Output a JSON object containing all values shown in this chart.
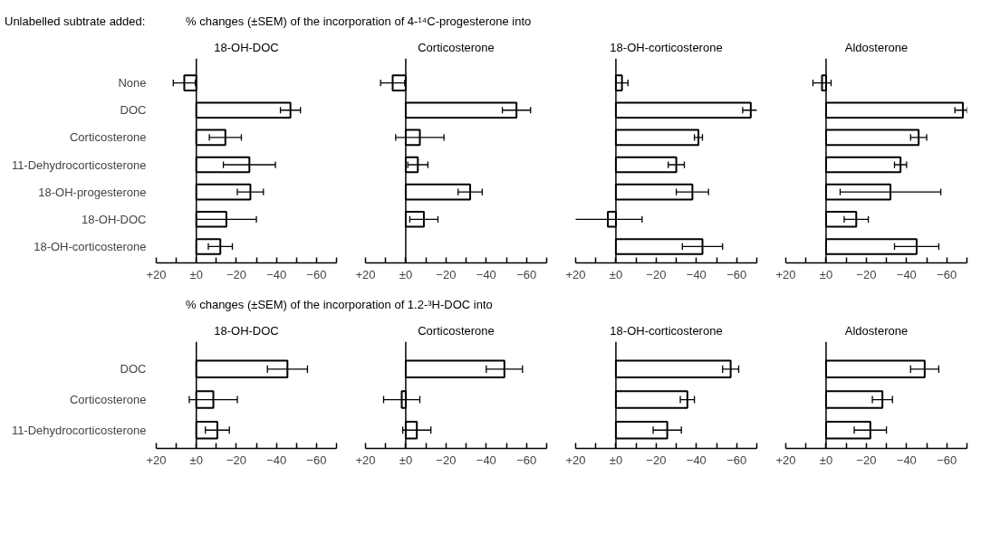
{
  "chart_data": [
    {
      "type": "bar",
      "orientation": "horizontal",
      "title": "18-OH-DOC",
      "annotations": [
        "Unlabelled subtrate added:",
        "% changes (±SEM) of the incorporation of 4-¹⁴C-progesterone into"
      ],
      "categories": [
        "None",
        "DOC",
        "Corticosterone",
        "11-Dehydrocorticosterone",
        "18-OH-progesterone",
        "18-OH-DOC",
        "18-OH-corticosterone"
      ],
      "values": [
        6,
        -47,
        -14.5,
        -26.5,
        -27,
        -15,
        -12
      ],
      "errors": [
        5.5,
        5,
        8,
        13,
        6.5,
        15,
        6
      ],
      "color": "#ffffff",
      "xlim": [
        20,
        -70
      ],
      "xticks": [
        {
          "value": 20,
          "label": "+20"
        },
        {
          "value": 10,
          "label": null
        },
        {
          "value": 0,
          "label": "±0"
        },
        {
          "value": -10,
          "label": null
        },
        -20,
        {
          "value": -30,
          "label": null
        },
        -40,
        {
          "value": -50,
          "label": null
        },
        -60,
        {
          "value": -70,
          "label": null
        }
      ],
      "ref_lines": [
        {
          "axis": "x",
          "value": 0
        }
      ]
    },
    {
      "type": "bar",
      "orientation": "horizontal",
      "title": "Corticosterone",
      "tick_labels": "x",
      "categories": [
        null,
        null,
        null,
        null,
        null,
        null,
        null
      ],
      "values": [
        6.5,
        -55,
        -7,
        -6,
        -32,
        -9,
        null
      ],
      "errors": [
        6,
        7,
        12,
        5,
        6,
        7,
        null
      ],
      "color": "#ffffff",
      "xlim": [
        20,
        -70
      ],
      "xticks": [
        {
          "value": 20,
          "label": "+20"
        },
        {
          "value": 10,
          "label": null
        },
        {
          "value": 0,
          "label": "±0"
        },
        {
          "value": -10,
          "label": null
        },
        -20,
        {
          "value": -30,
          "label": null
        },
        -40,
        {
          "value": -50,
          "label": null
        },
        -60,
        {
          "value": -70,
          "label": null
        }
      ],
      "ref_lines": [
        {
          "axis": "x",
          "value": 0
        }
      ]
    },
    {
      "type": "bar",
      "orientation": "horizontal",
      "title": "18-OH-corticosterone",
      "tick_labels": "x",
      "categories": [
        null,
        null,
        null,
        null,
        null,
        null,
        null
      ],
      "values": [
        -3,
        -67,
        -41,
        -30,
        -38,
        4,
        -43
      ],
      "errors": [
        3,
        4,
        2,
        4,
        8,
        17,
        10
      ],
      "color": "#ffffff",
      "xlim": [
        20,
        -70
      ],
      "xticks": [
        {
          "value": 20,
          "label": "+20"
        },
        {
          "value": 10,
          "label": null
        },
        {
          "value": 0,
          "label": "±0"
        },
        {
          "value": -10,
          "label": null
        },
        -20,
        {
          "value": -30,
          "label": null
        },
        -40,
        {
          "value": -50,
          "label": null
        },
        -60,
        {
          "value": -70,
          "label": null
        }
      ],
      "ref_lines": [
        {
          "axis": "x",
          "value": 0
        }
      ]
    },
    {
      "type": "bar",
      "orientation": "horizontal",
      "title": "Aldosterone",
      "tick_labels": "x",
      "categories": [
        null,
        null,
        null,
        null,
        null,
        null,
        null
      ],
      "values": [
        2,
        -68,
        -46,
        -37,
        -32,
        -15,
        -45
      ],
      "errors": [
        4.5,
        [
          -70,
          -64
        ],
        4,
        3,
        25,
        6,
        11
      ],
      "color": "#ffffff",
      "xlim": [
        20,
        -70
      ],
      "xticks": [
        {
          "value": 20,
          "label": "+20"
        },
        {
          "value": 10,
          "label": null
        },
        {
          "value": 0,
          "label": "±0"
        },
        {
          "value": -10,
          "label": null
        },
        -20,
        {
          "value": -30,
          "label": null
        },
        -40,
        {
          "value": -50,
          "label": null
        },
        -60,
        {
          "value": -70,
          "label": null
        }
      ],
      "ref_lines": [
        {
          "axis": "x",
          "value": 0
        }
      ]
    },
    {
      "type": "bar",
      "orientation": "horizontal",
      "title": "18-OH-DOC",
      "annotations": [
        "% changes (±SEM) of the incorporation of 1.2-³H-DOC into"
      ],
      "categories": [
        "DOC",
        "Corticosterone",
        "11-Dehydrocorticosterone"
      ],
      "values": [
        -45.5,
        -8.5,
        -10.5
      ],
      "errors": [
        10,
        12,
        6
      ],
      "color": "#ffffff",
      "xlim": [
        20,
        -70
      ],
      "xticks": [
        {
          "value": 20,
          "label": "+20"
        },
        {
          "value": 10,
          "label": null
        },
        {
          "value": 0,
          "label": "±0"
        },
        {
          "value": -10,
          "label": null
        },
        -20,
        {
          "value": -30,
          "label": null
        },
        -40,
        {
          "value": -50,
          "label": null
        },
        -60,
        {
          "value": -70,
          "label": null
        }
      ],
      "ref_lines": [
        {
          "axis": "x",
          "value": 0
        }
      ]
    },
    {
      "type": "bar",
      "orientation": "horizontal",
      "title": "Corticosterone",
      "tick_labels": "x",
      "categories": [
        null,
        null,
        null
      ],
      "values": [
        -49,
        2,
        -5.5
      ],
      "errors": [
        9,
        9,
        7
      ],
      "color": "#ffffff",
      "xlim": [
        20,
        -70
      ],
      "xticks": [
        {
          "value": 20,
          "label": "+20"
        },
        {
          "value": 10,
          "label": null
        },
        {
          "value": 0,
          "label": "±0"
        },
        {
          "value": -10,
          "label": null
        },
        -20,
        {
          "value": -30,
          "label": null
        },
        -40,
        {
          "value": -50,
          "label": null
        },
        -60,
        {
          "value": -70,
          "label": null
        }
      ],
      "ref_lines": [
        {
          "axis": "x",
          "value": 0
        }
      ]
    },
    {
      "type": "bar",
      "orientation": "horizontal",
      "title": "18-OH-corticosterone",
      "tick_labels": "x",
      "categories": [
        null,
        null,
        null
      ],
      "values": [
        -57,
        -35.5,
        -25.5
      ],
      "errors": [
        4,
        3.5,
        7
      ],
      "color": "#ffffff",
      "xlim": [
        20,
        -70
      ],
      "xticks": [
        {
          "value": 20,
          "label": "+20"
        },
        {
          "value": 10,
          "label": null
        },
        {
          "value": 0,
          "label": "±0"
        },
        {
          "value": -10,
          "label": null
        },
        -20,
        {
          "value": -30,
          "label": null
        },
        -40,
        {
          "value": -50,
          "label": null
        },
        -60,
        {
          "value": -70,
          "label": null
        }
      ],
      "ref_lines": [
        {
          "axis": "x",
          "value": 0
        }
      ]
    },
    {
      "type": "bar",
      "orientation": "horizontal",
      "title": "Aldosterone",
      "tick_labels": "x",
      "categories": [
        null,
        null,
        null
      ],
      "values": [
        -49,
        -28,
        -22
      ],
      "errors": [
        7,
        5,
        8
      ],
      "color": "#ffffff",
      "xlim": [
        20,
        -70
      ],
      "xticks": [
        {
          "value": 20,
          "label": "+20"
        },
        {
          "value": 10,
          "label": null
        },
        {
          "value": 0,
          "label": "±0"
        },
        {
          "value": -10,
          "label": null
        },
        -20,
        {
          "value": -30,
          "label": null
        },
        -40,
        {
          "value": -50,
          "label": null
        },
        -60,
        {
          "value": -70,
          "label": null
        }
      ],
      "ref_lines": [
        {
          "axis": "x",
          "value": 0
        }
      ]
    }
  ]
}
